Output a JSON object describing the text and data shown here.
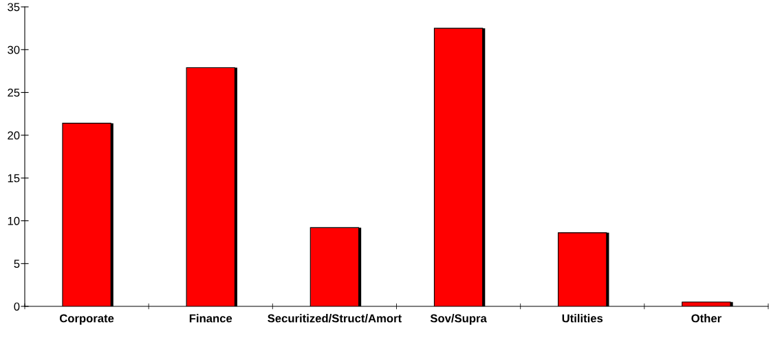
{
  "chart_data": {
    "type": "bar",
    "categories": [
      "Corporate",
      "Finance",
      "Securitized/Struct/Amort",
      "Sov/Supra",
      "Utilities",
      "Other"
    ],
    "values": [
      21.4,
      27.9,
      9.2,
      32.5,
      8.6,
      0.5
    ],
    "color": "#ff0000",
    "ylim": [
      0,
      35
    ],
    "yticks": [
      0,
      5,
      10,
      15,
      20,
      25,
      30,
      35
    ],
    "grid": false,
    "legend": false
  }
}
